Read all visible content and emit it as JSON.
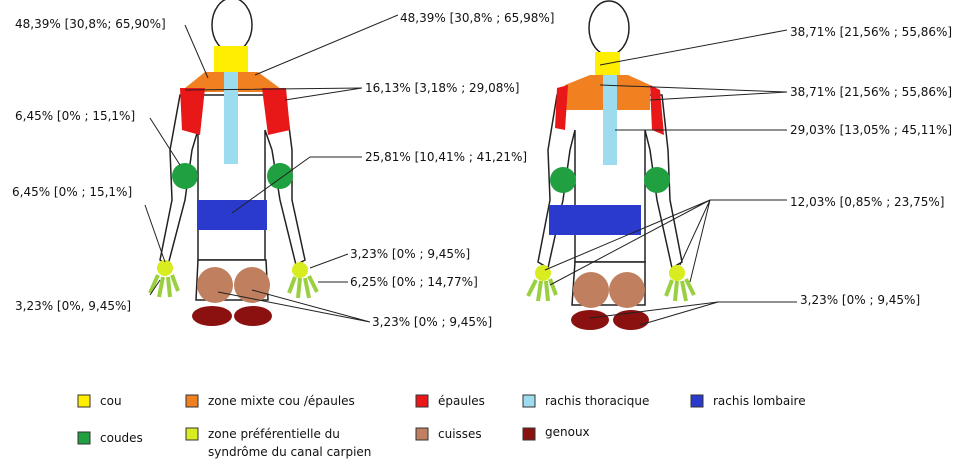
{
  "figures": [
    {
      "labels": [
        "48,39% [30,8%; 65,90%]",
        "48,39% [30,8% ; 65,98%]",
        "16,13% [3,18% ; 29,08%]",
        "6,45% [0% ; 15,1%]",
        "25,81% [10,41% ; 41,21%]",
        "6,45% [0% ; 15,1%]",
        "3,23% [0% ; 9,45%]",
        "6,25% [0% ; 14,77%]",
        "3,23% [0%, 9,45%]",
        "3,23% [0% ; 9,45%]"
      ]
    },
    {
      "labels": [
        "38,71% [21,56% ; 55,86%]",
        "38,71% [21,56% ; 55,86%]",
        "29,03% [13,05% ; 45,11%]",
        "12,03% [0,85% ; 23,75%]",
        "3,23% [0% ; 9,45%]"
      ]
    }
  ],
  "legend": [
    {
      "label": "cou"
    },
    {
      "label": "zone mixte cou  /épaules"
    },
    {
      "label": "épaules"
    },
    {
      "label": "rachis thoracique"
    },
    {
      "label": "rachis lombaire"
    },
    {
      "label": "coudes"
    },
    {
      "label": [
        "zone préférentielle du",
        "syndrôme du canal carpien"
      ]
    },
    {
      "label": "cuisses"
    },
    {
      "label": "genoux"
    }
  ]
}
